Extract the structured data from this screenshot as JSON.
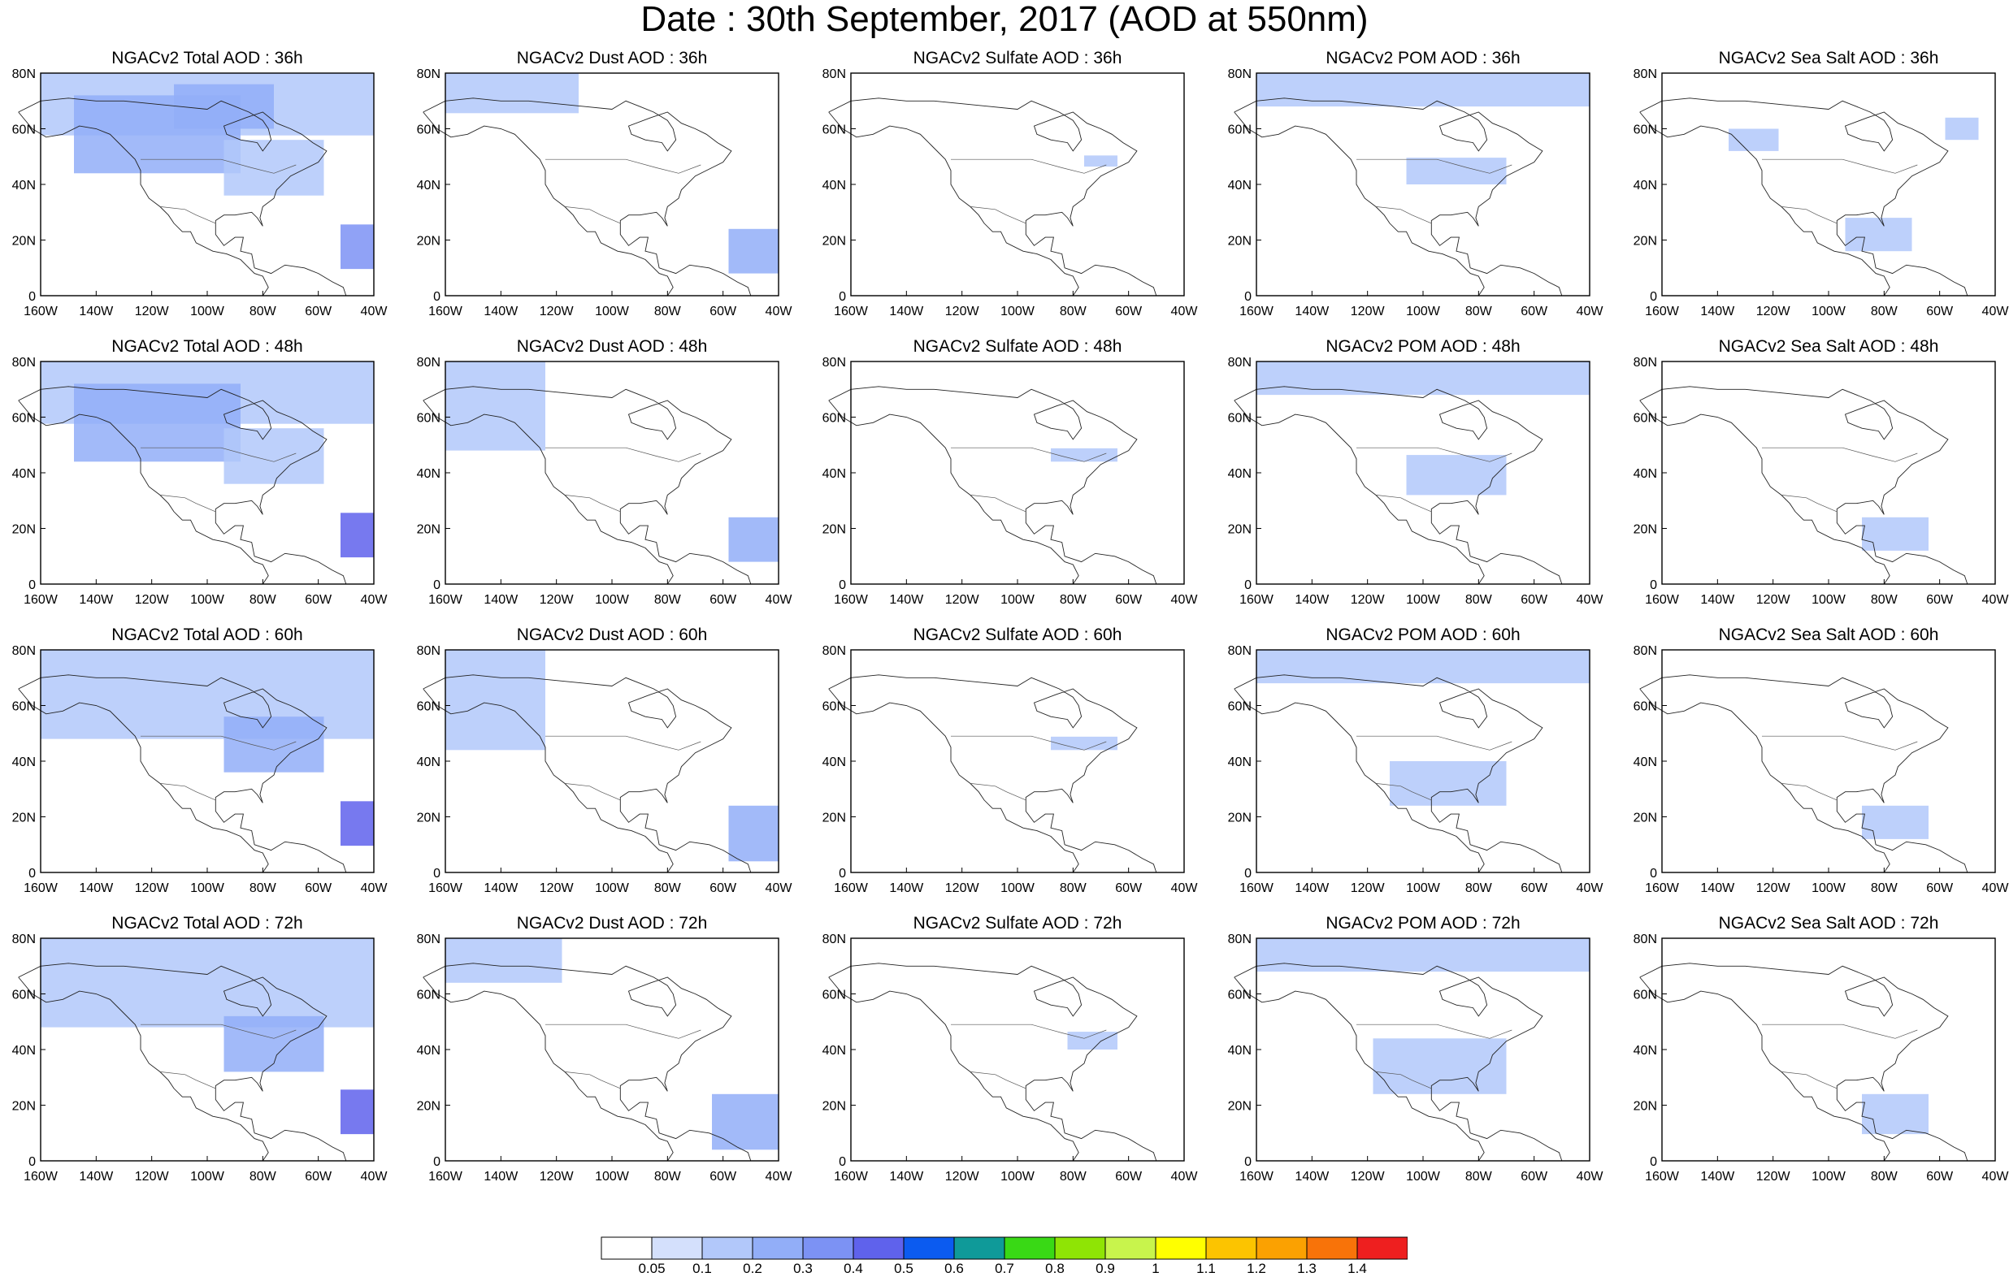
{
  "title": "Date : 30th September, 2017 (AOD at 550nm)",
  "panels": [
    {
      "title": "NGACv2 Total AOD : 36h",
      "level": 3,
      "blobs": [
        [
          0,
          0.72,
          1,
          0.28,
          0.2
        ],
        [
          0.1,
          0.55,
          0.5,
          0.35,
          0.3
        ],
        [
          0.9,
          0.12,
          0.1,
          0.2,
          0.6
        ],
        [
          0.55,
          0.45,
          0.3,
          0.25,
          0.25
        ],
        [
          0.4,
          0.75,
          0.3,
          0.2,
          0.3
        ]
      ]
    },
    {
      "title": "NGACv2 Dust AOD : 36h",
      "level": 2,
      "blobs": [
        [
          0,
          0.82,
          0.4,
          0.18,
          0.15
        ],
        [
          0.85,
          0.1,
          0.15,
          0.2,
          0.4
        ]
      ]
    },
    {
      "title": "NGACv2 Sulfate AOD : 36h",
      "level": 1,
      "blobs": [
        [
          0.7,
          0.58,
          0.1,
          0.05,
          0.15
        ]
      ]
    },
    {
      "title": "NGACv2 POM AOD : 36h",
      "level": 2,
      "blobs": [
        [
          0,
          0.85,
          1,
          0.15,
          0.2
        ],
        [
          0.45,
          0.5,
          0.3,
          0.12,
          0.2
        ]
      ]
    },
    {
      "title": "NGACv2 Sea Salt AOD : 36h",
      "level": 2,
      "blobs": [
        [
          0.2,
          0.65,
          0.15,
          0.1,
          0.2
        ],
        [
          0.55,
          0.2,
          0.2,
          0.15,
          0.2
        ],
        [
          0.85,
          0.7,
          0.1,
          0.1,
          0.2
        ]
      ]
    },
    {
      "title": "NGACv2 Total AOD : 48h",
      "level": 3,
      "blobs": [
        [
          0,
          0.72,
          1,
          0.28,
          0.2
        ],
        [
          0.1,
          0.55,
          0.5,
          0.35,
          0.3
        ],
        [
          0.9,
          0.12,
          0.1,
          0.2,
          0.7
        ],
        [
          0.55,
          0.45,
          0.3,
          0.25,
          0.25
        ]
      ]
    },
    {
      "title": "NGACv2 Dust AOD : 48h",
      "level": 2,
      "blobs": [
        [
          0,
          0.6,
          0.3,
          0.4,
          0.15
        ],
        [
          0.85,
          0.1,
          0.15,
          0.2,
          0.45
        ]
      ]
    },
    {
      "title": "NGACv2 Sulfate AOD : 48h",
      "level": 1,
      "blobs": [
        [
          0.6,
          0.55,
          0.2,
          0.06,
          0.2
        ]
      ]
    },
    {
      "title": "NGACv2 POM AOD : 48h",
      "level": 2,
      "blobs": [
        [
          0,
          0.85,
          1,
          0.15,
          0.2
        ],
        [
          0.45,
          0.4,
          0.3,
          0.18,
          0.25
        ]
      ]
    },
    {
      "title": "NGACv2 Sea Salt AOD : 48h",
      "level": 2,
      "blobs": [
        [
          0.6,
          0.15,
          0.2,
          0.15,
          0.2
        ]
      ]
    },
    {
      "title": "NGACv2 Total AOD : 60h",
      "level": 3,
      "blobs": [
        [
          0,
          0.6,
          1,
          0.4,
          0.2
        ],
        [
          0.55,
          0.45,
          0.3,
          0.25,
          0.3
        ],
        [
          0.9,
          0.12,
          0.1,
          0.2,
          0.7
        ]
      ]
    },
    {
      "title": "NGACv2 Dust AOD : 60h",
      "level": 2,
      "blobs": [
        [
          0,
          0.55,
          0.3,
          0.45,
          0.15
        ],
        [
          0.85,
          0.05,
          0.15,
          0.25,
          0.45
        ]
      ]
    },
    {
      "title": "NGACv2 Sulfate AOD : 60h",
      "level": 1,
      "blobs": [
        [
          0.6,
          0.55,
          0.2,
          0.06,
          0.2
        ]
      ]
    },
    {
      "title": "NGACv2 POM AOD : 60h",
      "level": 2,
      "blobs": [
        [
          0,
          0.85,
          1,
          0.15,
          0.25
        ],
        [
          0.4,
          0.3,
          0.35,
          0.2,
          0.25
        ]
      ]
    },
    {
      "title": "NGACv2 Sea Salt AOD : 60h",
      "level": 2,
      "blobs": [
        [
          0.6,
          0.15,
          0.2,
          0.15,
          0.25
        ]
      ]
    },
    {
      "title": "NGACv2 Total AOD : 72h",
      "level": 3,
      "blobs": [
        [
          0,
          0.6,
          1,
          0.4,
          0.25
        ],
        [
          0.55,
          0.4,
          0.3,
          0.25,
          0.3
        ],
        [
          0.9,
          0.12,
          0.1,
          0.2,
          0.7
        ]
      ]
    },
    {
      "title": "NGACv2 Dust AOD : 72h",
      "level": 2,
      "blobs": [
        [
          0,
          0.8,
          0.35,
          0.2,
          0.15
        ],
        [
          0.8,
          0.05,
          0.2,
          0.25,
          0.45
        ]
      ]
    },
    {
      "title": "NGACv2 Sulfate AOD : 72h",
      "level": 1,
      "blobs": [
        [
          0.65,
          0.5,
          0.15,
          0.08,
          0.2
        ]
      ]
    },
    {
      "title": "NGACv2 POM AOD : 72h",
      "level": 2,
      "blobs": [
        [
          0,
          0.85,
          1,
          0.15,
          0.25
        ],
        [
          0.35,
          0.3,
          0.4,
          0.25,
          0.25
        ]
      ]
    },
    {
      "title": "NGACv2 Sea Salt  AOD : 72h",
      "level": 2,
      "blobs": [
        [
          0.6,
          0.12,
          0.2,
          0.18,
          0.25
        ]
      ]
    }
  ],
  "x_ticks": [
    "160W",
    "140W",
    "120W",
    "100W",
    "80W",
    "60W",
    "40W"
  ],
  "y_ticks": [
    "80N",
    "60N",
    "40N",
    "20N",
    "0"
  ],
  "colorbar": {
    "colors": [
      "#ffffff",
      "#d4e0fc",
      "#b2c8fa",
      "#92aef8",
      "#7c92f4",
      "#5f62ec",
      "#0b5bf0",
      "#0f9a99",
      "#39d915",
      "#8fe405",
      "#c8f44c",
      "#ffff00",
      "#fcc400",
      "#fba101",
      "#f87309",
      "#ee1f1f"
    ],
    "labels": [
      "0.05",
      "0.1",
      "0.2",
      "0.3",
      "0.4",
      "0.5",
      "0.6",
      "0.7",
      "0.8",
      "0.9",
      "1",
      "1.1",
      "1.2",
      "1.3",
      "1.4"
    ]
  }
}
